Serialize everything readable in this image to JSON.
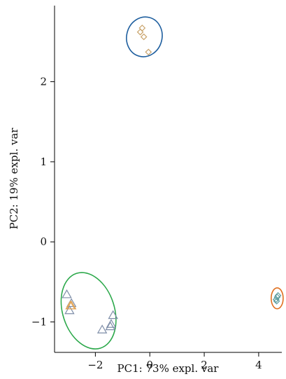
{
  "chart_data": {
    "type": "scatter",
    "title": "",
    "xlabel": "PC1: 73% expl. var",
    "ylabel": "PC2: 19% expl. var",
    "xlim": [
      -3.5,
      4.85
    ],
    "ylim": [
      -1.38,
      2.95
    ],
    "xticks": [
      -2,
      0,
      2,
      4
    ],
    "yticks": [
      -1,
      0,
      1,
      2
    ],
    "grid": false,
    "legend": "none",
    "series": [
      {
        "marker": "diamond",
        "color": "#c9a36b",
        "points": [
          {
            "x": -0.28,
            "y": 2.67
          },
          {
            "x": -0.35,
            "y": 2.62
          },
          {
            "x": -0.22,
            "y": 2.56
          },
          {
            "x": -0.05,
            "y": 2.37
          }
        ]
      },
      {
        "marker": "triangle",
        "color": "#7f8ea8",
        "points": [
          {
            "x": -3.05,
            "y": -0.66
          },
          {
            "x": -2.88,
            "y": -0.77
          },
          {
            "x": -2.95,
            "y": -0.86
          },
          {
            "x": -1.75,
            "y": -1.1
          },
          {
            "x": -1.45,
            "y": -1.06
          },
          {
            "x": -1.42,
            "y": -1.03
          },
          {
            "x": -1.35,
            "y": -0.92
          }
        ]
      },
      {
        "marker": "triangle",
        "color": "#e0a050",
        "points": [
          {
            "x": -2.92,
            "y": -0.8
          },
          {
            "x": -2.88,
            "y": -0.8
          }
        ]
      },
      {
        "marker": "diamond",
        "color": "#5f9ea0",
        "points": [
          {
            "x": 4.68,
            "y": -0.69
          },
          {
            "x": 4.64,
            "y": -0.72
          },
          {
            "x": 4.71,
            "y": -0.67
          },
          {
            "x": 4.66,
            "y": -0.74
          }
        ]
      }
    ],
    "ellipses": [
      {
        "cx": -0.2,
        "cy": 2.56,
        "rx": 0.65,
        "ry": 0.25,
        "rotation": 15,
        "color": "#1f5f9f"
      },
      {
        "cx": -2.25,
        "cy": -0.86,
        "rx": 0.95,
        "ry": 0.49,
        "rotation": -18,
        "color": "#2ba84a"
      },
      {
        "cx": 4.68,
        "cy": -0.705,
        "rx": 0.22,
        "ry": 0.13,
        "rotation": 0,
        "color": "#e07020"
      }
    ]
  }
}
